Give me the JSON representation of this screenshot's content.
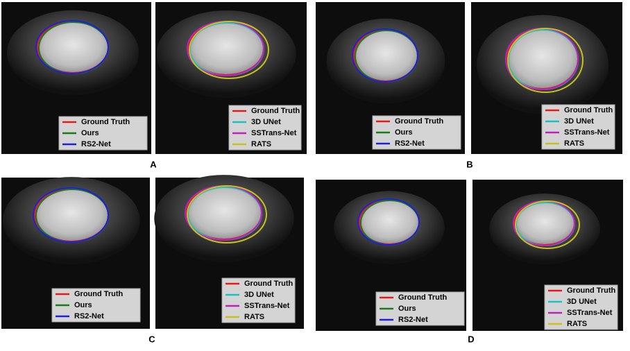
{
  "panels": [
    {
      "label": "A",
      "images": [
        {
          "legend": [
            {
              "name": "Ground Truth",
              "color": "#e41a1c"
            },
            {
              "name": "Ours",
              "color": "#1a7a1a"
            },
            {
              "name": "RS2-Net",
              "color": "#1f1fdc"
            }
          ]
        },
        {
          "legend": [
            {
              "name": "Ground Truth",
              "color": "#e41a1c"
            },
            {
              "name": "3D UNet",
              "color": "#20c0c0"
            },
            {
              "name": "SSTrans-Net",
              "color": "#c020c0"
            },
            {
              "name": "RATS",
              "color": "#c8c020"
            }
          ]
        }
      ]
    },
    {
      "label": "B",
      "images": [
        {
          "legend": [
            {
              "name": "Ground Truth",
              "color": "#e41a1c"
            },
            {
              "name": "Ours",
              "color": "#1a7a1a"
            },
            {
              "name": "RS2-Net",
              "color": "#1f1fdc"
            }
          ]
        },
        {
          "legend": [
            {
              "name": "Ground Truth",
              "color": "#e41a1c"
            },
            {
              "name": "3D UNet",
              "color": "#20c0c0"
            },
            {
              "name": "SSTrans-Net",
              "color": "#c020c0"
            },
            {
              "name": "RATS",
              "color": "#c8c020"
            }
          ]
        }
      ]
    },
    {
      "label": "C",
      "images": [
        {
          "legend": [
            {
              "name": "Ground Truth",
              "color": "#e41a1c"
            },
            {
              "name": "Ours",
              "color": "#1a7a1a"
            },
            {
              "name": "RS2-Net",
              "color": "#1f1fdc"
            }
          ]
        },
        {
          "legend": [
            {
              "name": "Ground Truth",
              "color": "#e41a1c"
            },
            {
              "name": "3D UNet",
              "color": "#20c0c0"
            },
            {
              "name": "SSTrans-Net",
              "color": "#c020c0"
            },
            {
              "name": "RATS",
              "color": "#c8c020"
            }
          ]
        }
      ]
    },
    {
      "label": "D",
      "images": [
        {
          "legend": [
            {
              "name": "Ground Truth",
              "color": "#e41a1c"
            },
            {
              "name": "Ours",
              "color": "#1a7a1a"
            },
            {
              "name": "RS2-Net",
              "color": "#1f1fdc"
            }
          ]
        },
        {
          "legend": [
            {
              "name": "Ground Truth",
              "color": "#e41a1c"
            },
            {
              "name": "3D UNet",
              "color": "#20c0c0"
            },
            {
              "name": "SSTrans-Net",
              "color": "#c020c0"
            },
            {
              "name": "RATS",
              "color": "#c8c020"
            }
          ]
        }
      ]
    }
  ]
}
